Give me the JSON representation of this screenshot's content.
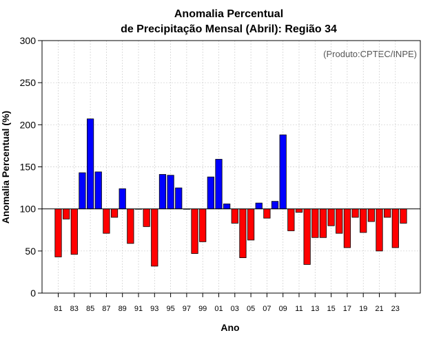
{
  "chart_data": {
    "type": "bar",
    "title_line1": "Anomalia Percentual",
    "title_line2": "de Precipitação Mensal (Abril): Região 34",
    "credit": "(Produto:CPTEC/INPE)",
    "xlabel": "Ano",
    "ylabel": "Anomalia Percentual (%)",
    "ylim": [
      0,
      300
    ],
    "yticks": [
      0,
      50,
      100,
      150,
      200,
      250,
      300
    ],
    "baseline": 100,
    "grid": true,
    "colors": {
      "above": "#0000ff",
      "below": "#ff0000",
      "edge": "#000000",
      "grid": "#cccccc"
    },
    "categories": [
      "81",
      "82",
      "83",
      "84",
      "85",
      "86",
      "87",
      "88",
      "89",
      "90",
      "91",
      "92",
      "93",
      "94",
      "95",
      "96",
      "97",
      "98",
      "99",
      "00",
      "01",
      "02",
      "03",
      "04",
      "05",
      "06",
      "07",
      "08",
      "09",
      "10",
      "11",
      "12",
      "13",
      "14",
      "15",
      "16",
      "17",
      "18",
      "19",
      "20",
      "21",
      "22",
      "23",
      "24"
    ],
    "xtick_labels": [
      "81",
      "83",
      "85",
      "87",
      "89",
      "91",
      "93",
      "95",
      "97",
      "99",
      "01",
      "03",
      "05",
      "07",
      "09",
      "11",
      "13",
      "15",
      "17",
      "19",
      "21",
      "23"
    ],
    "values": [
      43,
      88,
      46,
      143,
      207,
      144,
      71,
      90,
      124,
      59,
      100,
      79,
      32,
      141,
      140,
      125,
      100,
      47,
      61,
      138,
      159,
      106,
      83,
      42,
      63,
      107,
      89,
      109,
      188,
      74,
      96,
      34,
      66,
      66,
      80,
      71,
      54,
      90,
      72,
      85,
      50,
      90,
      54,
      83
    ]
  }
}
